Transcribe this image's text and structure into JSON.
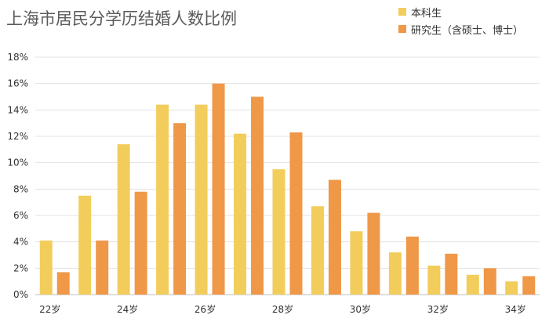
{
  "chart_data": {
    "type": "bar",
    "title": "上海市居民分学历结婚人数比例",
    "x": [
      22,
      23,
      24,
      25,
      26,
      27,
      28,
      29,
      30,
      31,
      32,
      33,
      34
    ],
    "x_tick_labels": [
      "22岁",
      "",
      "24岁",
      "",
      "26岁",
      "",
      "28岁",
      "",
      "30岁",
      "",
      "32岁",
      "",
      "34岁"
    ],
    "series": [
      {
        "name": "本科生",
        "color": "#f2cd5c",
        "values": [
          4.1,
          7.5,
          11.4,
          14.4,
          14.4,
          12.2,
          9.5,
          6.7,
          4.8,
          3.2,
          2.2,
          1.5,
          1.0
        ]
      },
      {
        "name": "研究生（含硕士、博士）",
        "color": "#ef9848",
        "values": [
          1.7,
          4.1,
          7.8,
          13.0,
          16.0,
          15.0,
          12.3,
          8.7,
          6.2,
          4.4,
          3.1,
          2.0,
          1.4
        ]
      }
    ],
    "ylim": [
      0,
      18
    ],
    "y_ticks": [
      0,
      2,
      4,
      6,
      8,
      10,
      12,
      14,
      16,
      18
    ],
    "y_tick_format": "{v}%",
    "grid": true,
    "legend": "top-right"
  }
}
